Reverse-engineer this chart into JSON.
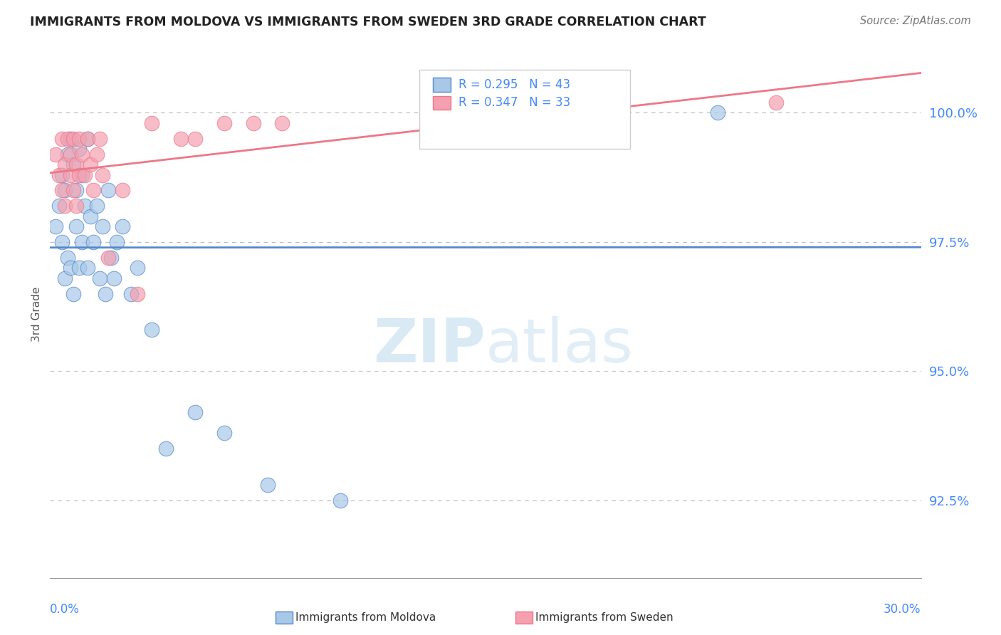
{
  "title": "IMMIGRANTS FROM MOLDOVA VS IMMIGRANTS FROM SWEDEN 3RD GRADE CORRELATION CHART",
  "source": "Source: ZipAtlas.com",
  "ylabel": "3rd Grade",
  "y_ticks": [
    100.0,
    97.5,
    95.0,
    92.5
  ],
  "y_tick_labels": [
    "100.0%",
    "97.5%",
    "95.0%",
    "92.5%"
  ],
  "xlim": [
    0.0,
    30.0
  ],
  "ylim": [
    91.0,
    101.2
  ],
  "legend_r1": "R = 0.295",
  "legend_n1": "N = 43",
  "legend_r2": "R = 0.347",
  "legend_n2": "N = 33",
  "blue_color": "#a8c8e8",
  "pink_color": "#f4a0b0",
  "blue_line_color": "#5588cc",
  "pink_line_color": "#ee7788",
  "legend_text_color": "#4488ff",
  "title_color": "#222222",
  "watermark_zip": "ZIP",
  "watermark_atlas": "atlas",
  "moldova_x": [
    0.2,
    0.3,
    0.4,
    0.4,
    0.5,
    0.5,
    0.6,
    0.6,
    0.7,
    0.7,
    0.8,
    0.8,
    0.9,
    0.9,
    1.0,
    1.0,
    1.1,
    1.1,
    1.2,
    1.3,
    1.3,
    1.4,
    1.5,
    1.6,
    1.7,
    1.8,
    1.9,
    2.0,
    2.1,
    2.2,
    2.3,
    2.5,
    2.8,
    3.0,
    3.5,
    4.0,
    5.0,
    6.0,
    7.5,
    10.0,
    13.0,
    17.0,
    23.0
  ],
  "moldova_y": [
    97.8,
    98.2,
    97.5,
    98.8,
    96.8,
    98.5,
    97.2,
    99.2,
    97.0,
    99.5,
    96.5,
    99.0,
    97.8,
    98.5,
    97.0,
    99.3,
    97.5,
    98.8,
    98.2,
    97.0,
    99.5,
    98.0,
    97.5,
    98.2,
    96.8,
    97.8,
    96.5,
    98.5,
    97.2,
    96.8,
    97.5,
    97.8,
    96.5,
    97.0,
    95.8,
    93.5,
    94.2,
    93.8,
    92.8,
    92.5,
    99.8,
    99.8,
    100.0
  ],
  "sweden_x": [
    0.2,
    0.3,
    0.4,
    0.4,
    0.5,
    0.5,
    0.6,
    0.7,
    0.7,
    0.8,
    0.8,
    0.9,
    0.9,
    1.0,
    1.0,
    1.1,
    1.2,
    1.3,
    1.4,
    1.5,
    1.6,
    1.7,
    1.8,
    2.0,
    2.5,
    3.0,
    3.5,
    4.5,
    5.0,
    6.0,
    7.0,
    8.0,
    25.0
  ],
  "sweden_y": [
    99.2,
    98.8,
    99.5,
    98.5,
    99.0,
    98.2,
    99.5,
    98.8,
    99.2,
    99.5,
    98.5,
    99.0,
    98.2,
    99.5,
    98.8,
    99.2,
    98.8,
    99.5,
    99.0,
    98.5,
    99.2,
    99.5,
    98.8,
    97.2,
    98.5,
    96.5,
    99.8,
    99.5,
    99.5,
    99.8,
    99.8,
    99.8,
    100.2
  ]
}
